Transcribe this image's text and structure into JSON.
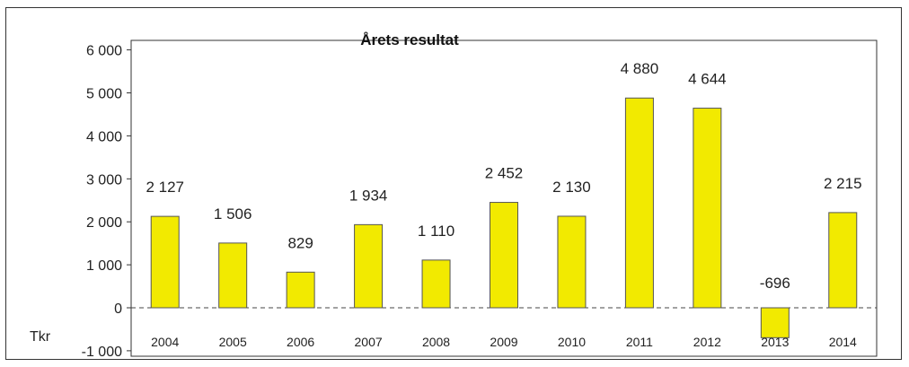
{
  "chart_data": {
    "type": "bar",
    "title": "Årets resultat",
    "unit_label": "Tkr",
    "categories": [
      "2004",
      "2005",
      "2006",
      "2007",
      "2008",
      "2009",
      "2010",
      "2011",
      "2012",
      "2013",
      "2014"
    ],
    "values": [
      2127,
      1506,
      829,
      1934,
      1110,
      2452,
      2130,
      4880,
      4644,
      -696,
      2215
    ],
    "data_labels": [
      "2 127",
      "1 506",
      "829",
      "1 934",
      "1 110",
      "2 452",
      "2 130",
      "4 880",
      "4 644",
      "-696",
      "2 215"
    ],
    "ylim": [
      -1000,
      6000
    ],
    "yticks": [
      6000,
      5000,
      4000,
      3000,
      2000,
      1000,
      0,
      -1000
    ],
    "ytick_labels": [
      "6 000",
      "5 000",
      "4 000",
      "3 000",
      "2 000",
      "1 000",
      "0",
      "-1 000"
    ],
    "bar_color": "#f2ea00",
    "grid": false,
    "legend": false
  }
}
